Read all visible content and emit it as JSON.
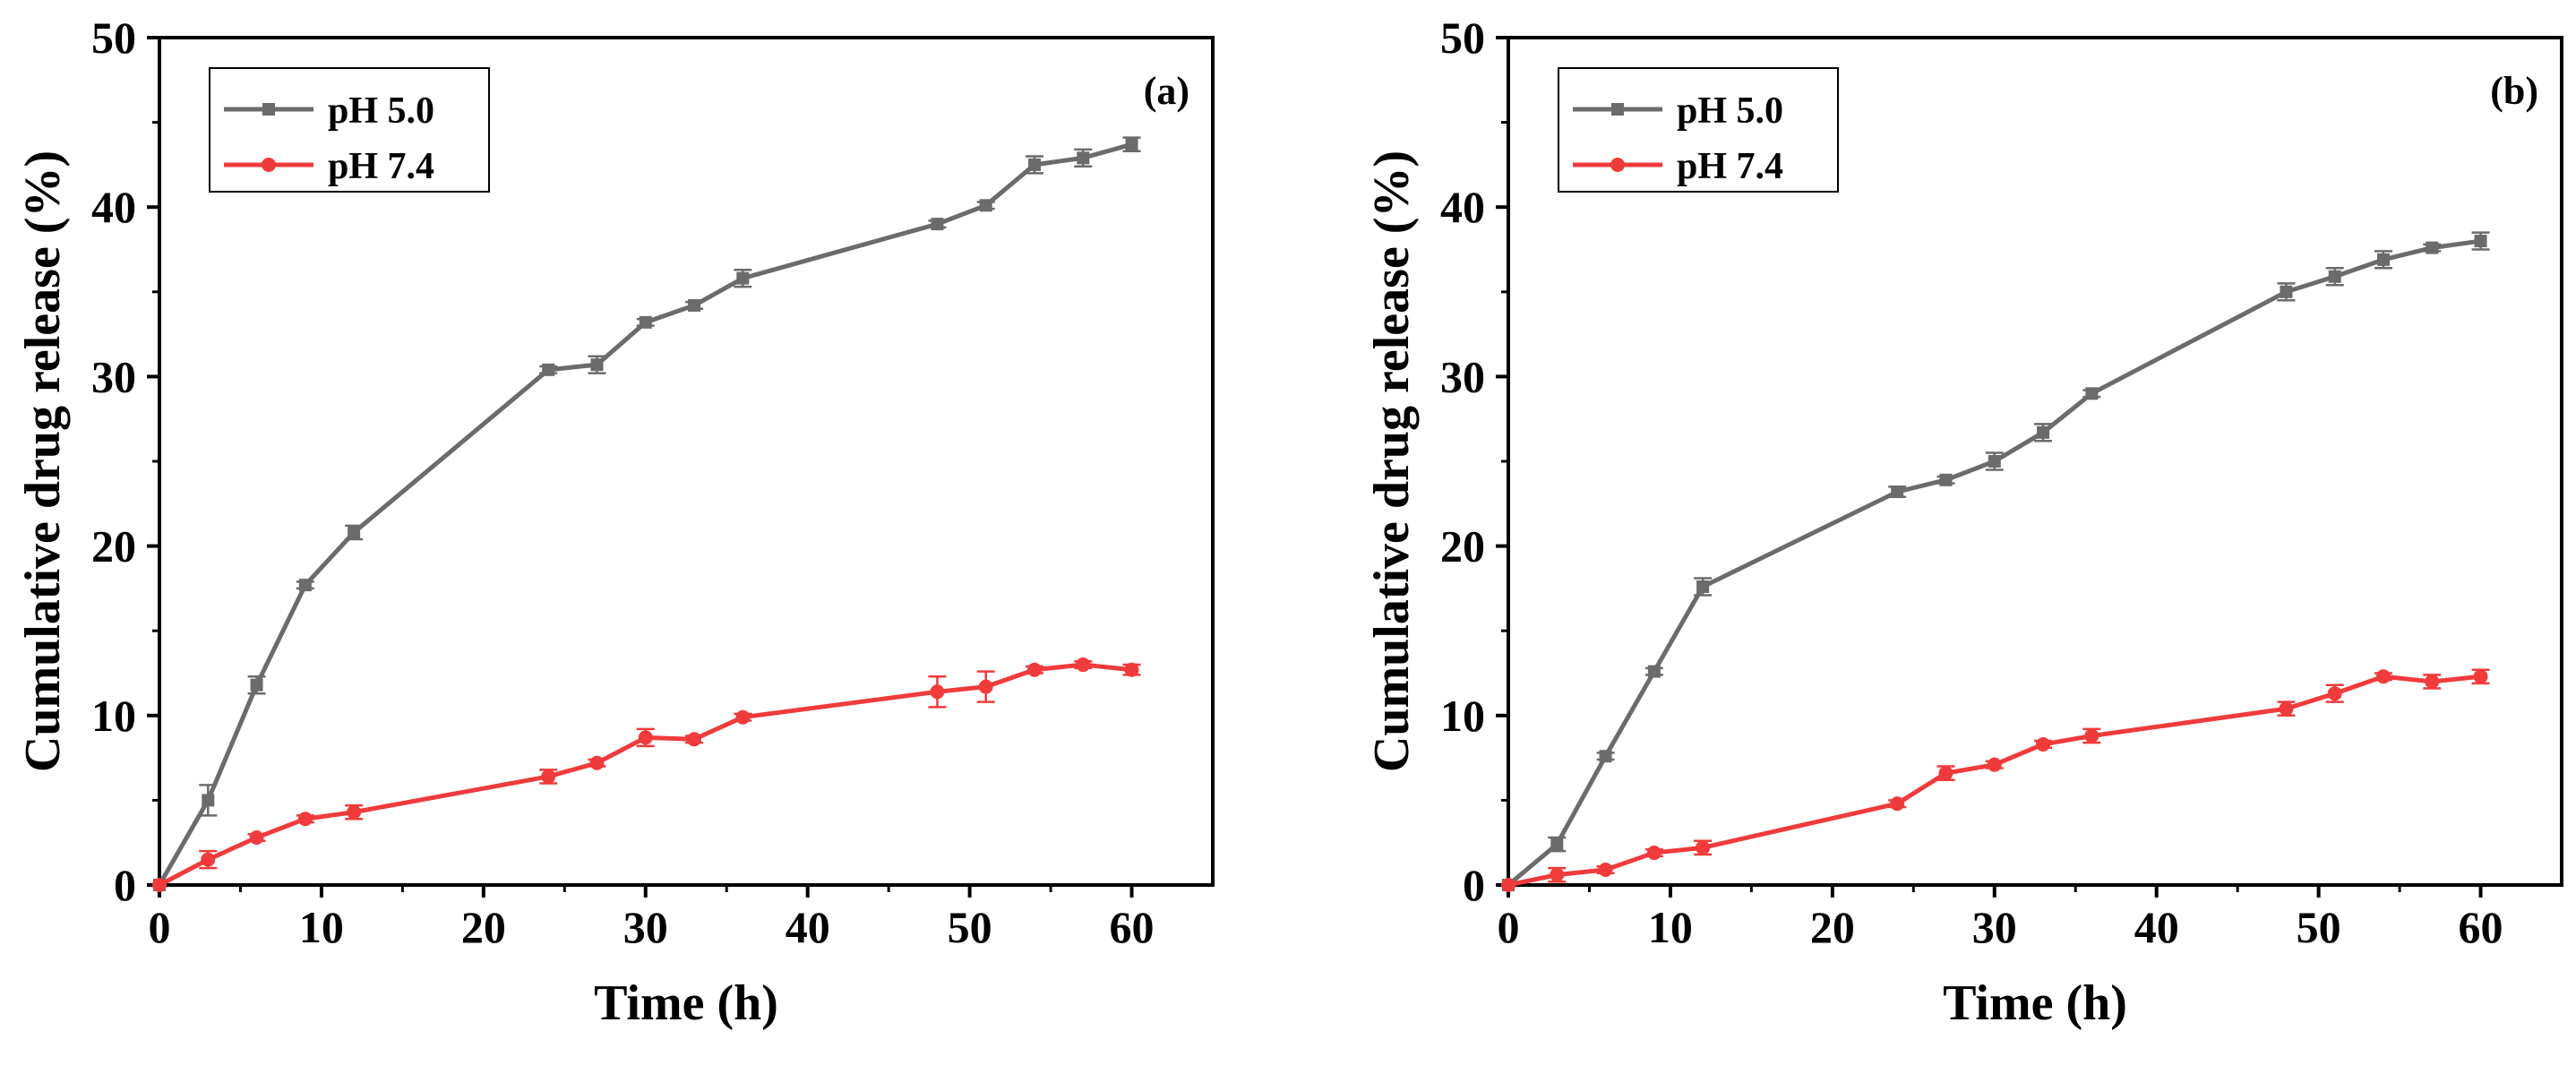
{
  "chart_data": [
    {
      "type": "line",
      "panel_label": "(a)",
      "xlabel": "Time (h)",
      "ylabel": "Cumulative drug release (%)",
      "xlim": [
        0,
        65
      ],
      "ylim": [
        0,
        50
      ],
      "xticks": [
        0,
        10,
        20,
        30,
        40,
        50,
        60
      ],
      "yticks": [
        0,
        10,
        20,
        30,
        40,
        50
      ],
      "xtick_labels": [
        "0",
        "10",
        "20",
        "30",
        "40",
        "50",
        "60"
      ],
      "ytick_labels": [
        "0",
        "10",
        "20",
        "30",
        "40",
        "50"
      ],
      "legend_position": "top-left",
      "series": [
        {
          "name": "pH 5.0",
          "color": "#6b6b6b",
          "marker": "square",
          "x": [
            0,
            3,
            6,
            9,
            12,
            24,
            27,
            30,
            33,
            36,
            48,
            51,
            54,
            57,
            60
          ],
          "values": [
            0,
            5.0,
            11.8,
            17.7,
            20.8,
            30.4,
            30.7,
            33.2,
            34.2,
            35.8,
            39.0,
            40.1,
            42.5,
            42.9,
            43.7
          ],
          "errors": [
            0,
            0.9,
            0.5,
            0.2,
            0.4,
            0.2,
            0.5,
            0.2,
            0.2,
            0.5,
            0.2,
            0.2,
            0.5,
            0.5,
            0.4
          ]
        },
        {
          "name": "pH 7.4",
          "color": "#ef3b3b",
          "marker": "circle",
          "x": [
            0,
            3,
            6,
            9,
            12,
            24,
            27,
            30,
            33,
            36,
            48,
            51,
            54,
            57,
            60
          ],
          "values": [
            0,
            1.5,
            2.8,
            3.9,
            4.3,
            6.4,
            7.2,
            8.7,
            8.6,
            9.9,
            11.4,
            11.7,
            12.7,
            13.0,
            12.7
          ],
          "errors": [
            0,
            0.5,
            0.2,
            0.2,
            0.4,
            0.4,
            0.2,
            0.5,
            0.2,
            0.2,
            0.9,
            0.9,
            0.2,
            0.2,
            0.3
          ]
        }
      ]
    },
    {
      "type": "line",
      "panel_label": "(b)",
      "xlabel": "Time (h)",
      "ylabel": "Cumulative drug release (%)",
      "xlim": [
        0,
        65
      ],
      "ylim": [
        0,
        50
      ],
      "xticks": [
        0,
        10,
        20,
        30,
        40,
        50,
        60
      ],
      "yticks": [
        0,
        10,
        20,
        30,
        40,
        50
      ],
      "xtick_labels": [
        "0",
        "10",
        "20",
        "30",
        "40",
        "50",
        "60"
      ],
      "ytick_labels": [
        "0",
        "10",
        "20",
        "30",
        "40",
        "50"
      ],
      "legend_position": "top-left",
      "series": [
        {
          "name": "pH 5.0",
          "color": "#6b6b6b",
          "marker": "square",
          "x": [
            0,
            3,
            6,
            9,
            12,
            24,
            27,
            30,
            33,
            36,
            48,
            51,
            54,
            57,
            60
          ],
          "values": [
            0,
            2.4,
            7.6,
            12.6,
            17.6,
            23.2,
            23.9,
            25.0,
            26.7,
            29.0,
            35.0,
            35.9,
            36.9,
            37.6,
            38.0
          ],
          "errors": [
            0,
            0.4,
            0.2,
            0.2,
            0.5,
            0.3,
            0.2,
            0.5,
            0.5,
            0.2,
            0.5,
            0.5,
            0.5,
            0.2,
            0.5
          ]
        },
        {
          "name": "pH 7.4",
          "color": "#ef3b3b",
          "marker": "circle",
          "x": [
            0,
            3,
            6,
            9,
            12,
            24,
            27,
            30,
            33,
            36,
            48,
            51,
            54,
            57,
            60
          ],
          "values": [
            0,
            0.6,
            0.9,
            1.9,
            2.2,
            4.8,
            6.6,
            7.1,
            8.3,
            8.8,
            10.4,
            11.3,
            12.3,
            12.0,
            12.3
          ],
          "errors": [
            0,
            0.4,
            0.2,
            0.2,
            0.4,
            0.2,
            0.4,
            0.2,
            0.2,
            0.4,
            0.4,
            0.5,
            0.2,
            0.4,
            0.4
          ]
        }
      ]
    }
  ]
}
